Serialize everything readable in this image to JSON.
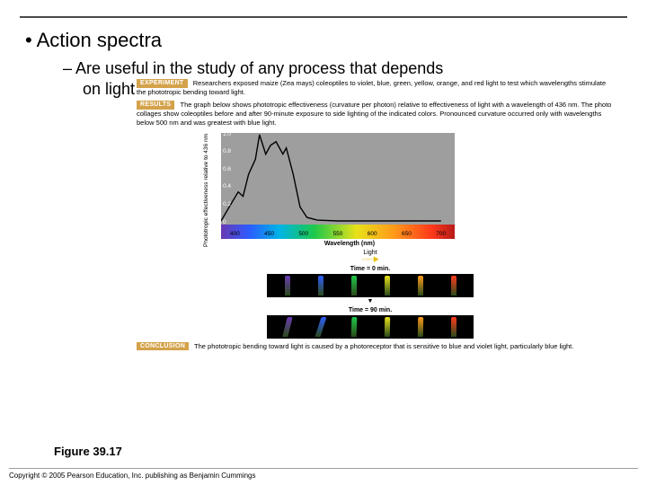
{
  "title_rule": true,
  "bullet1": "Action spectra",
  "bullet2_line1": "Are useful in the study of any process that depends",
  "bullet2_line2": "on light",
  "experiment": {
    "tag": "EXPERIMENT",
    "text": "Researchers exposed maize (Zea mays) coleoptiles to violet, blue, green, yellow, orange, and red light to test which wavelengths stimulate the phototropic bending toward light."
  },
  "results": {
    "tag": "RESULTS",
    "text": "The graph below shows phototropic effectiveness (curvature per photon) relative to effectiveness of light with a wavelength of 436 nm. The photo collages show coleoptiles before and after 90-minute exposure to side lighting of the indicated colors. Pronounced curvature occurred only with wavelengths below 500 nm and was greatest with blue light."
  },
  "chart": {
    "type": "line",
    "ylabel": "Phototropic effectiveness relative to 436 nm",
    "xlabel": "Wavelength (nm)",
    "ylim": [
      0,
      1.0
    ],
    "yticks": [
      0,
      0.2,
      0.4,
      0.6,
      0.8,
      1.0
    ],
    "xlim": [
      380,
      720
    ],
    "xticks": [
      400,
      450,
      500,
      550,
      600,
      650,
      700
    ],
    "background_color": "#9e9e9e",
    "line_color": "#000000",
    "line_width": 1.4,
    "spectrum_gradient": [
      "#6a3ab2",
      "#2d5cff",
      "#00b4e6",
      "#1ec94a",
      "#e8e11a",
      "#ff9a1a",
      "#ff3a1a",
      "#b81a1a"
    ],
    "points": [
      [
        380,
        0.02
      ],
      [
        395,
        0.22
      ],
      [
        405,
        0.35
      ],
      [
        412,
        0.3
      ],
      [
        420,
        0.55
      ],
      [
        430,
        0.72
      ],
      [
        436,
        1.0
      ],
      [
        445,
        0.78
      ],
      [
        452,
        0.88
      ],
      [
        460,
        0.92
      ],
      [
        470,
        0.78
      ],
      [
        475,
        0.85
      ],
      [
        485,
        0.55
      ],
      [
        495,
        0.18
      ],
      [
        505,
        0.06
      ],
      [
        520,
        0.03
      ],
      [
        550,
        0.02
      ],
      [
        600,
        0.02
      ],
      [
        650,
        0.02
      ],
      [
        700,
        0.02
      ]
    ]
  },
  "collage": {
    "light_label": "Light",
    "before_label": "Time = 0 min.",
    "after_label": "Time = 90 min.",
    "colors": [
      "#6a3ab2",
      "#2d5cff",
      "#1ec94a",
      "#e8e11a",
      "#ff9a1a",
      "#ff3a1a"
    ],
    "bend_after": [
      14,
      18,
      2,
      1,
      1,
      0
    ]
  },
  "figure_label": "Figure 39.17",
  "conclusion": {
    "tag": "CONCLUSION",
    "text": "The phototropic bending toward light is caused by a photoreceptor that is sensitive to blue and violet light, particularly blue light."
  },
  "copyright": "Copyright © 2005 Pearson Education, Inc. publishing as Benjamin Cummings"
}
